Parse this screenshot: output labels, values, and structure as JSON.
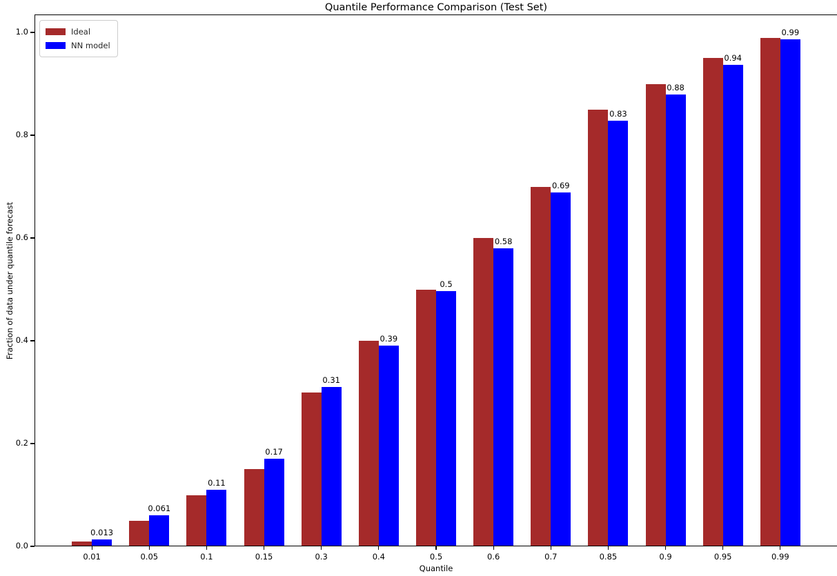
{
  "chart_data": {
    "type": "bar",
    "title": "Quantile Performance Comparison (Test Set)",
    "xlabel": "Quantile",
    "ylabel": "Fraction of data under quantile forecast",
    "categories": [
      "0.01",
      "0.05",
      "0.1",
      "0.15",
      "0.3",
      "0.4",
      "0.5",
      "0.6",
      "0.7",
      "0.85",
      "0.9",
      "0.95",
      "0.99"
    ],
    "series": [
      {
        "name": "Ideal",
        "color": "#A52A2A",
        "values": [
          0.01,
          0.05,
          0.1,
          0.15,
          0.3,
          0.4,
          0.5,
          0.6,
          0.7,
          0.85,
          0.9,
          0.95,
          0.99
        ]
      },
      {
        "name": "NN model",
        "color": "#0000FF",
        "values": [
          0.013,
          0.061,
          0.11,
          0.17,
          0.31,
          0.39,
          0.497,
          0.58,
          0.688,
          0.828,
          0.879,
          0.937,
          0.987
        ],
        "bar_labels": [
          "0.013",
          "0.061",
          "0.11",
          "0.17",
          "0.31",
          "0.39",
          "0.5",
          "0.58",
          "0.69",
          "0.83",
          "0.88",
          "0.94",
          "0.99"
        ]
      }
    ],
    "yticks": [
      "0.0",
      "0.2",
      "0.4",
      "0.6",
      "0.8",
      "1.0"
    ],
    "ylim": [
      0,
      1.035
    ],
    "legend_position": "upper left",
    "grid": false,
    "background_color": "#ffffff",
    "text_color": "#000000"
  }
}
